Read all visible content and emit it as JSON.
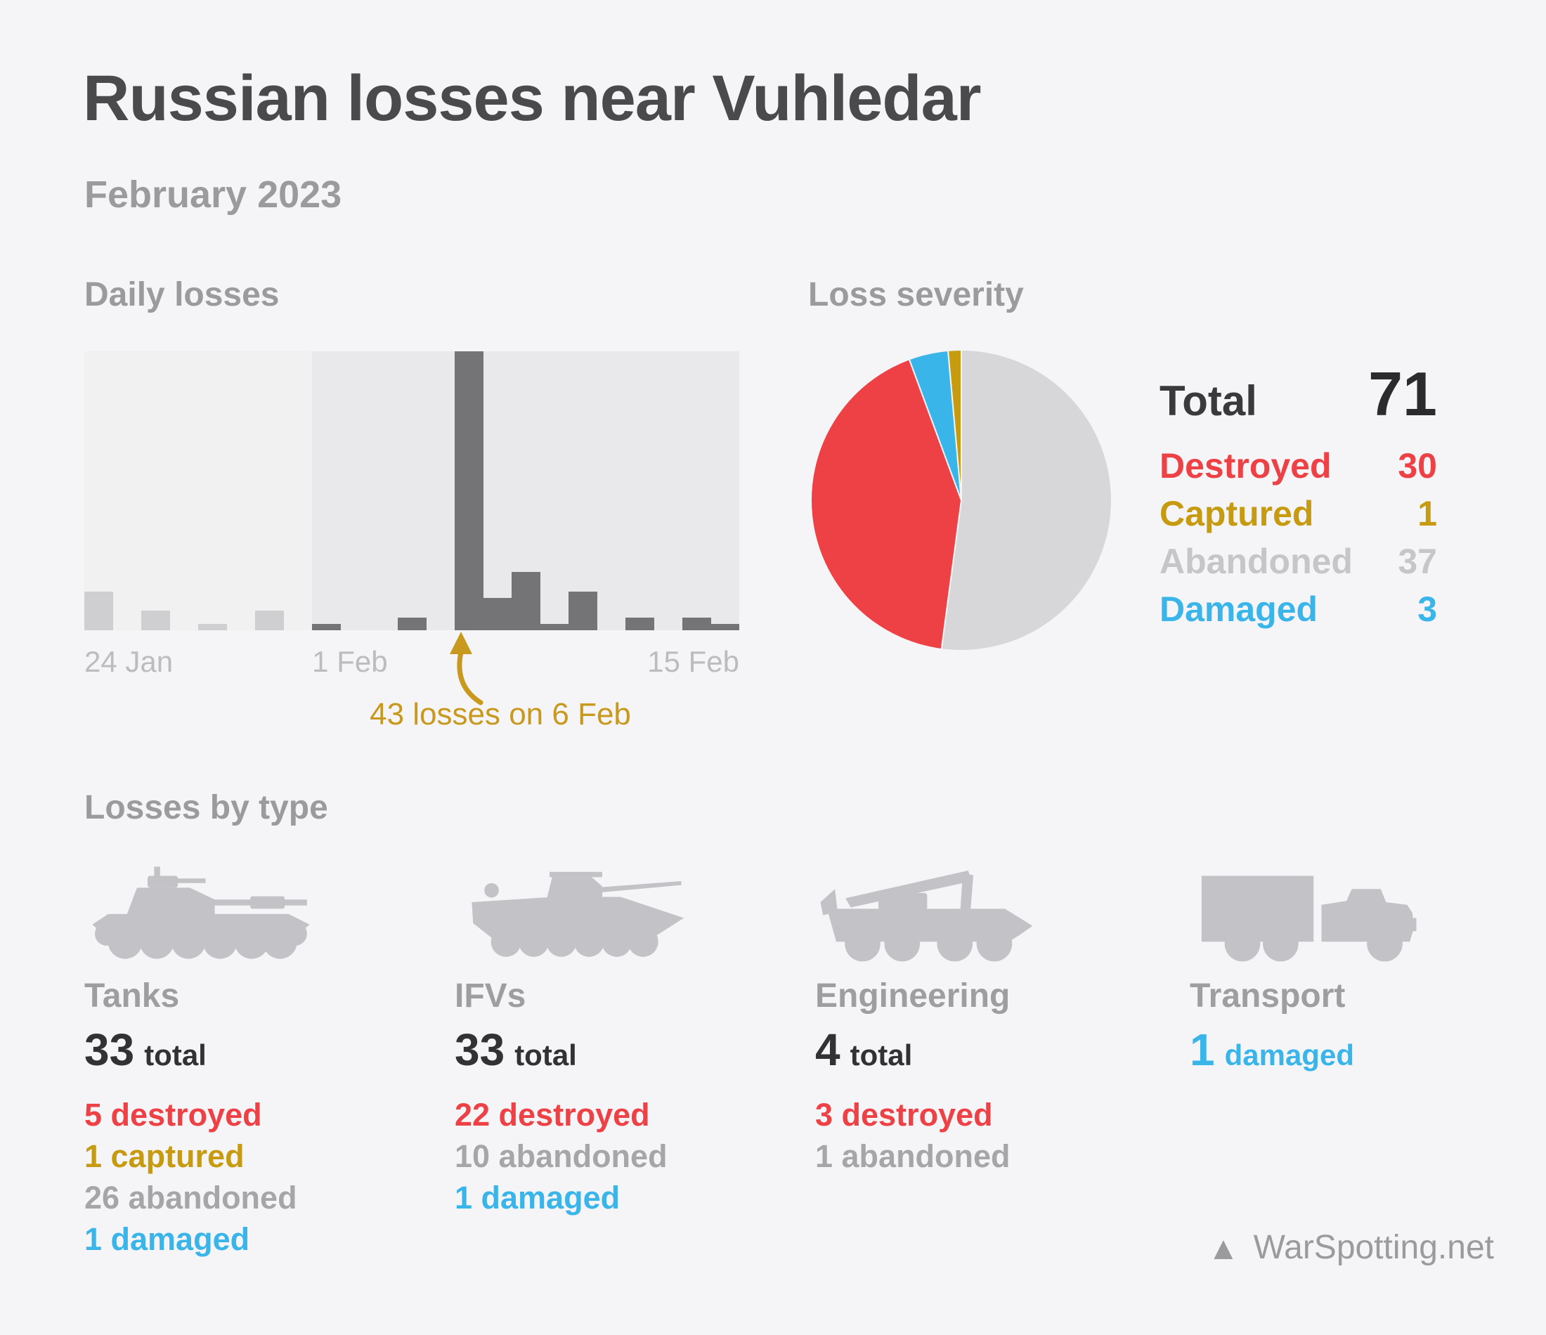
{
  "page": {
    "title": "Russian losses near Vuhledar",
    "subtitle": "February 2023",
    "footer": "WarSpotting.net",
    "logo_glyph": "▲"
  },
  "colors": {
    "background": "#f5f5f7",
    "title_text": "#4a4a4c",
    "muted_heading": "#9b9b9d",
    "axis_tick": "#bcbcbe",
    "dark_total": "#323234",
    "destroyed_red": "#ee4145",
    "captured_gold": "#c79b10",
    "abandoned_gray_legend": "#c6c6c8",
    "abandoned_gray_list": "#a6a6a8",
    "damaged_blue": "#3ab5e9",
    "annotation_gold": "#c8991c",
    "vehicle_silhouette": "#c3c3c7"
  },
  "daily": {
    "heading": "Daily losses",
    "ticks": [
      "24 Jan",
      "1 Feb",
      "15 Feb"
    ],
    "annotation": "43 losses on 6 Feb"
  },
  "severity": {
    "heading": "Loss severity",
    "total_label": "Total",
    "total_value": 71,
    "rows": [
      {
        "label": "Destroyed",
        "value": 30,
        "color": "#ee4145"
      },
      {
        "label": "Captured",
        "value": 1,
        "color": "#c79b10"
      },
      {
        "label": "Abandoned",
        "value": 37,
        "color": "#c6c6c8"
      },
      {
        "label": "Damaged",
        "value": 3,
        "color": "#3ab5e9"
      }
    ]
  },
  "types": {
    "heading": "Losses by type",
    "columns": [
      {
        "label": "Tanks",
        "icon": "tank-icon",
        "headline": {
          "value": "33",
          "word": "total",
          "color": "#323234"
        },
        "stats": [
          {
            "value": "5",
            "word": "destroyed",
            "color": "#ee4145"
          },
          {
            "value": "1",
            "word": "captured",
            "color": "#c79b10"
          },
          {
            "value": "26",
            "word": "abandoned",
            "color": "#a6a6a8"
          },
          {
            "value": "1",
            "word": "damaged",
            "color": "#3ab5e9"
          }
        ]
      },
      {
        "label": "IFVs",
        "icon": "ifv-icon",
        "headline": {
          "value": "33",
          "word": "total",
          "color": "#323234"
        },
        "stats": [
          {
            "value": "22",
            "word": "destroyed",
            "color": "#ee4145"
          },
          {
            "value": "10",
            "word": "abandoned",
            "color": "#a6a6a8"
          },
          {
            "value": "1",
            "word": "damaged",
            "color": "#3ab5e9"
          }
        ]
      },
      {
        "label": "Engineering",
        "icon": "engineering-vehicle-icon",
        "headline": {
          "value": "4",
          "word": "total",
          "color": "#323234"
        },
        "stats": [
          {
            "value": "3",
            "word": "destroyed",
            "color": "#ee4145"
          },
          {
            "value": "1",
            "word": "abandoned",
            "color": "#a6a6a8"
          }
        ]
      },
      {
        "label": "Transport",
        "icon": "truck-icon",
        "headline": {
          "value": "1",
          "word": "damaged",
          "color": "#3ab5e9"
        },
        "stats": []
      }
    ]
  },
  "chart_data": [
    {
      "type": "bar",
      "title": "Daily losses",
      "x": [
        "24 Jan",
        "25 Jan",
        "26 Jan",
        "27 Jan",
        "28 Jan",
        "29 Jan",
        "30 Jan",
        "31 Jan",
        "1 Feb",
        "2 Feb",
        "3 Feb",
        "4 Feb",
        "5 Feb",
        "6 Feb",
        "7 Feb",
        "8 Feb",
        "9 Feb",
        "10 Feb",
        "11 Feb",
        "12 Feb",
        "13 Feb",
        "14 Feb",
        "15 Feb"
      ],
      "values": [
        6,
        0,
        3,
        0,
        1,
        0,
        3,
        0,
        1,
        0,
        0,
        2,
        0,
        43,
        5,
        9,
        1,
        6,
        0,
        2,
        0,
        2,
        1
      ],
      "xlabel": "",
      "ylabel": "",
      "ylim": [
        0,
        43
      ],
      "grid": false,
      "legend": false,
      "tick_labels_shown": [
        "24 Jan",
        "1 Feb",
        "15 Feb"
      ],
      "annotation": {
        "text": "43 losses on 6 Feb",
        "target_x": "6 Feb",
        "value": 43
      },
      "series_colors": {
        "january_bars": "#cfcfd1",
        "february_bars": "#747476"
      },
      "panel_colors": {
        "january": "#f1f1f2",
        "february": "#e9e9eb"
      }
    },
    {
      "type": "pie",
      "title": "Loss severity",
      "labels": [
        "Abandoned",
        "Destroyed",
        "Damaged",
        "Captured"
      ],
      "values": [
        37,
        30,
        3,
        1
      ],
      "colors": [
        "#d7d7d9",
        "#ee4145",
        "#3ab5e9",
        "#c79b10"
      ],
      "total": 71,
      "start_angle_deg": -90,
      "direction": "clockwise",
      "legend_position": "right"
    }
  ]
}
